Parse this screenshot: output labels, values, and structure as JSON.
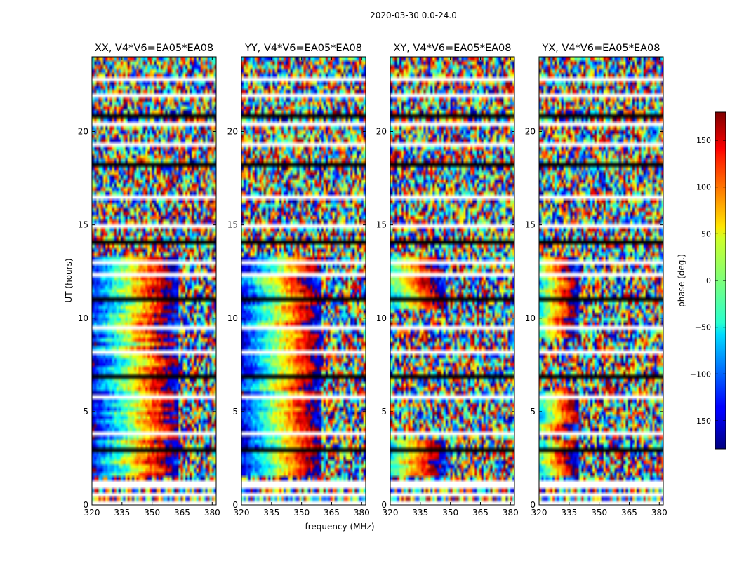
{
  "chart_data": {
    "type": "heatmap",
    "suptitle": "2020-03-30 0.0-24.0",
    "xlabel": "frequency (MHz)",
    "ylabel": "UT (hours)",
    "xlim": [
      320,
      382
    ],
    "ylim": [
      0,
      24
    ],
    "xticks": [
      320,
      335,
      350,
      365,
      380
    ],
    "yticks": [
      0,
      5,
      10,
      15,
      20
    ],
    "colormap": "jet",
    "colorbar": {
      "label": "phase (deg.)",
      "range": [
        -180,
        180
      ],
      "ticks": [
        150,
        100,
        50,
        0,
        -50,
        -100,
        -150
      ],
      "tick_labels": [
        "150",
        "100",
        "50",
        "0",
        "−50",
        "−100",
        "−150"
      ]
    },
    "flagged_ut_hours": [
      0.0,
      0.1,
      0.6,
      1.0,
      1.1,
      1.3,
      3.0,
      4.0,
      6.0,
      7.0,
      8.3,
      9.6,
      11.2,
      12.4,
      13.0,
      14.2,
      15.0,
      16.6,
      18.3,
      19.4,
      20.5,
      21.0,
      22.0,
      22.8
    ],
    "panels": [
      {
        "title": "XX, V4*V6=EA05*EA08",
        "pattern": "strong_gradient",
        "wrap_at_mhz": 363,
        "ut_active": [
          [
            1.5,
            13.2
          ]
        ]
      },
      {
        "title": "YY, V4*V6=EA05*EA08",
        "pattern": "strong_gradient",
        "wrap_at_mhz": 360,
        "ut_active": [
          [
            1.5,
            13.2
          ]
        ]
      },
      {
        "title": "XY, V4*V6=EA05*EA08",
        "pattern": "weak_gradient",
        "wrap_at_mhz": 348,
        "ut_active": [
          [
            1.5,
            3.5
          ],
          [
            10.5,
            13.2
          ]
        ]
      },
      {
        "title": "YX, V4*V6=EA05*EA08",
        "pattern": "weak_gradient",
        "wrap_at_mhz": 340,
        "ut_active": [
          [
            1.5,
            3.5
          ],
          [
            4.0,
            6.0
          ],
          [
            9.0,
            13.2
          ]
        ]
      }
    ]
  }
}
